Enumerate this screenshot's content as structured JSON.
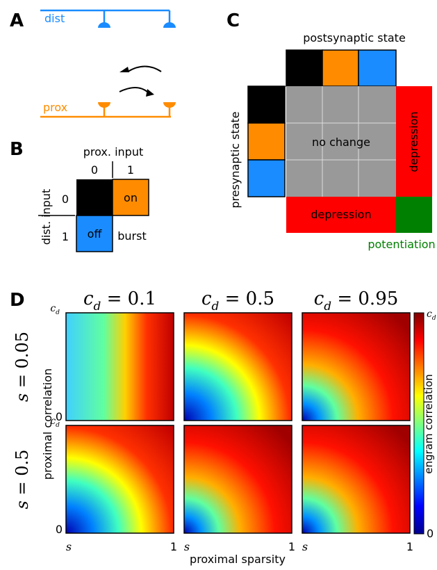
{
  "panels": {
    "A": {
      "label": "A",
      "dist": "dist",
      "prox": "prox"
    },
    "B": {
      "label": "B",
      "col_title": "prox. input",
      "row_title": "dist. input",
      "col_ticks": [
        "0",
        "1"
      ],
      "row_ticks": [
        "0",
        "1"
      ],
      "on": "on",
      "off": "off",
      "burst": "burst"
    },
    "C": {
      "label": "C",
      "col_title": "postsynaptic state",
      "row_title": "presynaptic state",
      "center": "no change",
      "right": "depression",
      "bottom": "depression",
      "corner": "potentiation"
    },
    "D": {
      "label": "D",
      "col_titles": [
        {
          "var": "c",
          "sub": "d",
          "rest": " = 0.1"
        },
        {
          "var": "c",
          "sub": "d",
          "rest": " = 0.5"
        },
        {
          "var": "c",
          "sub": "d",
          "rest": " = 0.95"
        }
      ],
      "row_titles": [
        {
          "var": "s",
          "rest": " = 0.05"
        },
        {
          "var": "s",
          "rest": " = 0.5"
        }
      ],
      "y_label": "proximal correlation",
      "x_label": "proximal sparsity",
      "y_ticks": [
        {
          "var": "c",
          "sub": "d"
        },
        "0"
      ],
      "x_ticks": [
        "s",
        "1"
      ],
      "colorbar_label": "engram correlation",
      "colorbar_ticks": [
        {
          "var": "c",
          "sub": "d"
        },
        "0"
      ]
    }
  }
}
